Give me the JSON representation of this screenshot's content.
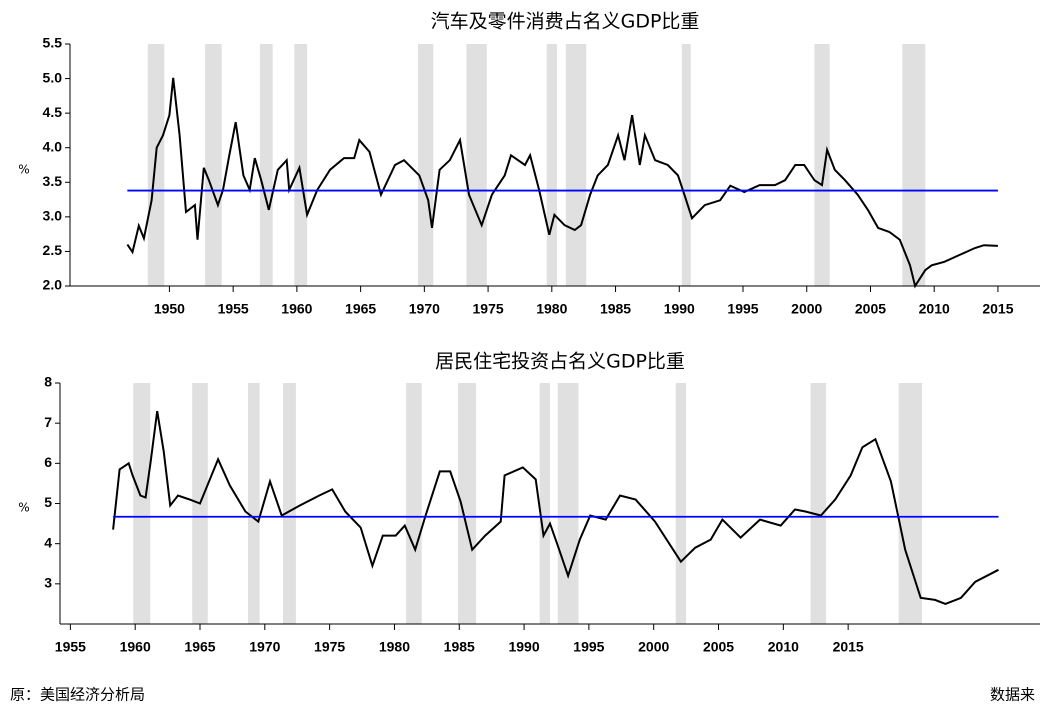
{
  "chart_data": [
    {
      "type": "line",
      "title": "汽车及零件消费占名义GDP比重",
      "ylabel": "%",
      "xlim": [
        1942.2,
        2018.3
      ],
      "ylim": [
        2.0,
        5.5
      ],
      "xticks": [
        1950,
        1955,
        1960,
        1965,
        1970,
        1975,
        1980,
        1985,
        1990,
        1995,
        2000,
        2005,
        2010,
        2015
      ],
      "yticks": [
        {
          "value": 2.0,
          "label": "2.0"
        },
        2.5,
        {
          "value": 3.0,
          "label": "3.0"
        },
        3.5,
        {
          "value": 4.0,
          "label": "4.0"
        },
        4.5,
        {
          "value": 5.0,
          "label": "5.0"
        },
        5.5
      ],
      "mean": 3.38,
      "mean_color": "#0000ff",
      "recession_color": "#e0e0e0",
      "recessions": [
        [
          1948.3,
          1949.6
        ],
        [
          1952.8,
          1954.1
        ],
        [
          1957.1,
          1958.1
        ],
        [
          1959.8,
          1960.8
        ],
        [
          1969.5,
          1970.7
        ],
        [
          1973.3,
          1974.9
        ],
        [
          1979.6,
          1980.4
        ],
        [
          1981.1,
          1982.7
        ],
        [
          1990.2,
          1990.9
        ],
        [
          2000.6,
          2001.8
        ],
        [
          2007.5,
          2009.3
        ]
      ],
      "series": [
        {
          "color": "#000000",
          "x": [
            1946.7,
            1947.1,
            1947.6,
            1948.0,
            1948.6,
            1949.0,
            1949.5,
            1950.0,
            1950.3,
            1950.8,
            1951.3,
            1952.0,
            1952.2,
            1952.7,
            1953.1,
            1953.8,
            1954.2,
            1954.7,
            1955.2,
            1955.8,
            1956.3,
            1956.7,
            1957.2,
            1957.8,
            1958.5,
            1959.2,
            1959.4,
            1960.2,
            1960.8,
            1961.6,
            1962.6,
            1963.7,
            1964.5,
            1964.9,
            1965.7,
            1966.6,
            1967.7,
            1968.4,
            1969.6,
            1970.3,
            1970.6,
            1971.2,
            1972.0,
            1972.8,
            1973.5,
            1974.5,
            1975.3,
            1976.3,
            1976.8,
            1977.9,
            1978.3,
            1979.0,
            1979.8,
            1980.2,
            1981.0,
            1981.8,
            1982.3,
            1983.0,
            1983.6,
            1984.4,
            1985.2,
            1985.7,
            1986.3,
            1986.9,
            1987.3,
            1988.1,
            1989.1,
            1989.9,
            1990.4,
            1991.0,
            1992.0,
            1993.2,
            1994.0,
            1995.1,
            1996.3,
            1997.5,
            1998.3,
            1999.1,
            1999.8,
            2000.6,
            2001.2,
            2001.6,
            2002.2,
            2003.0,
            2004.0,
            2004.8,
            2005.6,
            2006.5,
            2007.3,
            2008.1,
            2008.5,
            2009.3,
            2009.8,
            2010.8,
            2012.0,
            2013.2,
            2013.9,
            2015.0
          ],
          "values": [
            2.6,
            2.49,
            2.87,
            2.69,
            3.24,
            4.0,
            4.18,
            4.47,
            5.01,
            4.18,
            3.07,
            3.17,
            2.67,
            3.71,
            3.53,
            3.17,
            3.39,
            3.89,
            4.37,
            3.6,
            3.39,
            3.85,
            3.53,
            3.1,
            3.68,
            3.82,
            3.39,
            3.71,
            3.03,
            3.39,
            3.68,
            3.85,
            3.85,
            4.11,
            3.94,
            3.32,
            3.75,
            3.82,
            3.6,
            3.24,
            2.84,
            3.68,
            3.82,
            4.11,
            3.32,
            2.88,
            3.32,
            3.6,
            3.89,
            3.75,
            3.89,
            3.39,
            2.74,
            3.03,
            2.88,
            2.81,
            2.88,
            3.32,
            3.6,
            3.75,
            4.18,
            3.82,
            4.47,
            3.75,
            4.18,
            3.82,
            3.75,
            3.6,
            3.32,
            2.98,
            3.17,
            3.24,
            3.45,
            3.36,
            3.46,
            3.46,
            3.53,
            3.75,
            3.75,
            3.53,
            3.46,
            3.97,
            3.68,
            3.53,
            3.32,
            3.1,
            2.84,
            2.78,
            2.67,
            2.3,
            2.0,
            2.23,
            2.3,
            2.35,
            2.45,
            2.55,
            2.59,
            2.58
          ]
        }
      ]
    },
    {
      "type": "line",
      "title": "居民住宅投资占名义GDP比重",
      "ylabel": "%",
      "xlim": [
        1954.2,
        2029.8
      ],
      "ylim": [
        2,
        8
      ],
      "xticks": [
        1955,
        1960,
        1965,
        1970,
        1975,
        1980,
        1985,
        1990,
        1995,
        2000,
        2005,
        2010,
        2015
      ],
      "yticks": [
        3,
        4,
        5,
        6,
        7,
        8
      ],
      "mean": 4.67,
      "mean_color": "#0000ff",
      "recession_color": "#e0e0e0",
      "recessions": [
        [
          1959.85,
          1961.16
        ],
        [
          1964.4,
          1965.6
        ],
        [
          1968.7,
          1969.6
        ],
        [
          1971.4,
          1972.4
        ],
        [
          1980.9,
          1982.1
        ],
        [
          1984.9,
          1986.3
        ],
        [
          1991.2,
          1992.0
        ],
        [
          1992.6,
          1994.2
        ],
        [
          2001.7,
          2002.5
        ],
        [
          2012.1,
          2013.3
        ],
        [
          2018.9,
          2020.7
        ]
      ],
      "series": [
        {
          "color": "#000000",
          "x": [
            1958.3,
            1958.8,
            1959.5,
            1959.8,
            1960.4,
            1960.8,
            1961.2,
            1961.7,
            1962.2,
            1962.7,
            1963.3,
            1964.2,
            1965.0,
            1966.4,
            1967.3,
            1968.5,
            1969.5,
            1970.4,
            1971.3,
            1972.7,
            1974.2,
            1975.2,
            1976.2,
            1977.4,
            1978.3,
            1979.1,
            1980.1,
            1980.8,
            1981.6,
            1982.4,
            1983.5,
            1984.3,
            1985.1,
            1986.0,
            1987.0,
            1988.2,
            1988.5,
            1989.9,
            1990.9,
            1991.5,
            1992.0,
            1992.6,
            1993.4,
            1994.3,
            1995.1,
            1996.3,
            1997.4,
            1998.6,
            2000.1,
            2002.1,
            2003.2,
            2004.4,
            2005.3,
            2006.7,
            2008.2,
            2009.8,
            2010.9,
            2011.7,
            2012.9,
            2014.0,
            2015.2,
            2016.1,
            2017.1,
            2018.3,
            2019.4,
            2020.6,
            2021.7,
            2022.5,
            2023.7,
            2024.8,
            2026.6
          ],
          "values": [
            4.35,
            5.85,
            6.0,
            5.7,
            5.2,
            5.15,
            6.05,
            7.3,
            6.3,
            4.95,
            5.2,
            5.1,
            5.0,
            6.1,
            5.45,
            4.8,
            4.55,
            5.55,
            4.7,
            4.95,
            5.2,
            5.35,
            4.8,
            4.4,
            3.45,
            4.2,
            4.2,
            4.45,
            3.85,
            4.7,
            5.8,
            5.8,
            5.05,
            3.85,
            4.2,
            4.55,
            5.7,
            5.9,
            5.6,
            4.2,
            4.5,
            3.95,
            3.2,
            4.1,
            4.7,
            4.6,
            5.2,
            5.1,
            4.55,
            3.55,
            3.9,
            4.1,
            4.6,
            4.15,
            4.6,
            4.45,
            4.85,
            4.8,
            4.7,
            5.1,
            5.7,
            6.4,
            6.6,
            5.55,
            3.85,
            2.65,
            2.6,
            2.5,
            2.65,
            3.05,
            3.35
          ]
        }
      ]
    }
  ],
  "footer": {
    "left": "原：美国经济分析局",
    "right": "数据来"
  }
}
